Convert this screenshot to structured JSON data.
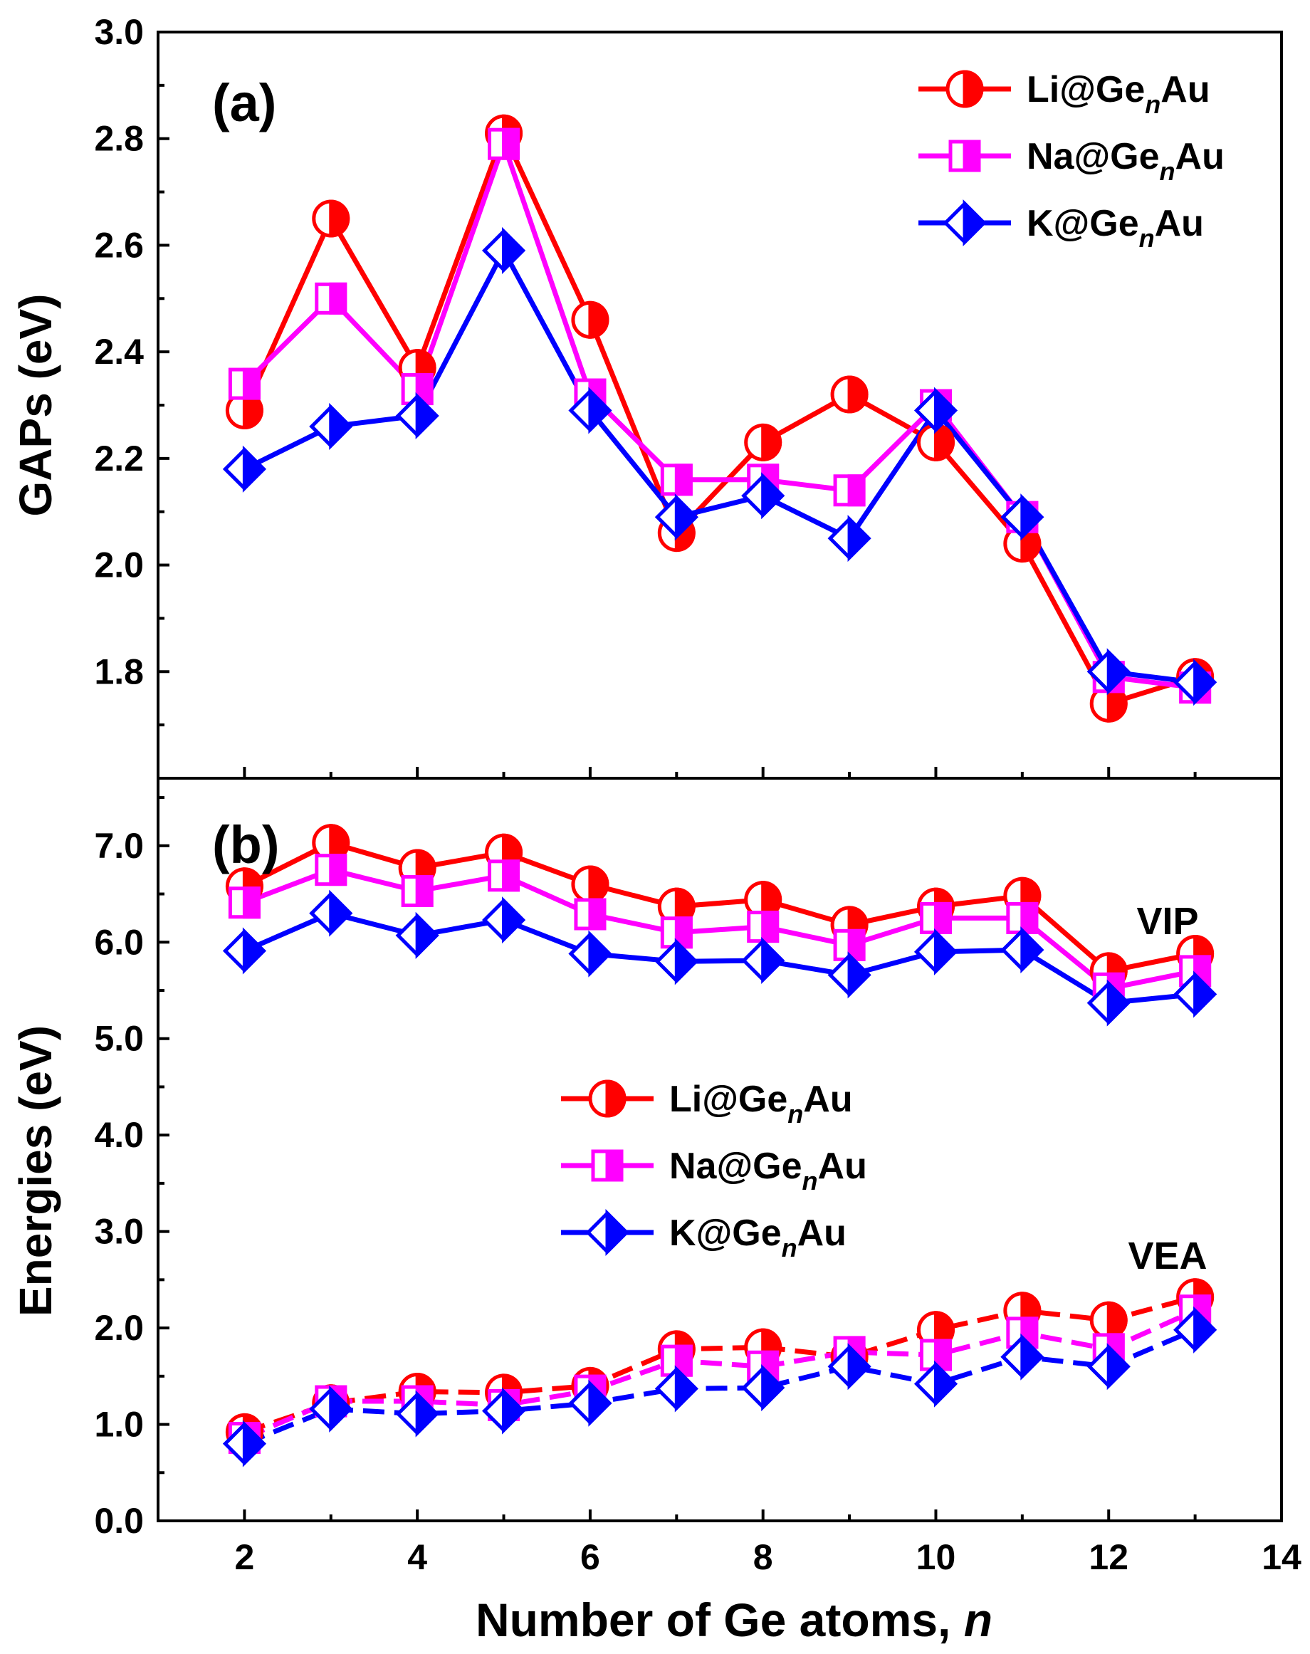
{
  "chart_data": [
    {
      "panel": "(a)",
      "type": "line",
      "ylabel": "GAPs (eV)",
      "ylim": [
        1.6,
        3.0
      ],
      "yticks": [
        "1.8",
        "2.0",
        "2.2",
        "2.4",
        "2.6",
        "2.8",
        "3.0"
      ],
      "xlim": [
        1,
        14
      ],
      "legend_position": "top-right",
      "x": [
        2,
        3,
        4,
        5,
        6,
        7,
        8,
        9,
        10,
        11,
        12,
        13
      ],
      "series": [
        {
          "name": "Li@GenAu",
          "legend_base": "Li@Ge",
          "legend_sub": "n",
          "legend_tail": "Au",
          "color": "#ff0000",
          "marker": "circle",
          "values": [
            2.29,
            2.65,
            2.37,
            2.81,
            2.46,
            2.06,
            2.23,
            2.32,
            2.23,
            2.04,
            1.74,
            1.79
          ]
        },
        {
          "name": "Na@GenAu",
          "legend_base": "Na@Ge",
          "legend_sub": "n",
          "legend_tail": "Au",
          "color": "#ff00ff",
          "marker": "square",
          "values": [
            2.34,
            2.5,
            2.33,
            2.79,
            2.32,
            2.16,
            2.16,
            2.14,
            2.3,
            2.09,
            1.79,
            1.77
          ]
        },
        {
          "name": "K@GenAu",
          "legend_base": "K@Ge",
          "legend_sub": "n",
          "legend_tail": "Au",
          "color": "#0000ff",
          "marker": "diamond",
          "values": [
            2.18,
            2.26,
            2.28,
            2.59,
            2.29,
            2.09,
            2.13,
            2.05,
            2.29,
            2.09,
            1.8,
            1.78
          ]
        }
      ]
    },
    {
      "panel": "(b)",
      "type": "line",
      "ylabel": "Energies (eV)",
      "xlabel": "Number of Ge atoms, ",
      "xlabel_italic": "n",
      "ylim": [
        0.0,
        7.7
      ],
      "yticks": [
        "0.0",
        "1.0",
        "2.0",
        "3.0",
        "4.0",
        "5.0",
        "6.0",
        "7.0"
      ],
      "xlim": [
        1,
        14
      ],
      "xticks": [
        "2",
        "4",
        "6",
        "8",
        "10",
        "12",
        "14"
      ],
      "legend_position": "center-left",
      "annotations": [
        "VIP",
        "VEA"
      ],
      "x": [
        2,
        3,
        4,
        5,
        6,
        7,
        8,
        9,
        10,
        11,
        12,
        13
      ],
      "series": [
        {
          "name": "Li@GenAu VIP",
          "color": "#ff0000",
          "marker": "circle",
          "dashed": false,
          "values": [
            6.58,
            7.03,
            6.77,
            6.93,
            6.6,
            6.37,
            6.44,
            6.18,
            6.37,
            6.48,
            5.7,
            5.88
          ]
        },
        {
          "name": "Na@GenAu VIP",
          "color": "#ff00ff",
          "marker": "square",
          "dashed": false,
          "values": [
            6.41,
            6.75,
            6.53,
            6.69,
            6.29,
            6.1,
            6.16,
            5.97,
            6.25,
            6.25,
            5.52,
            5.7
          ]
        },
        {
          "name": "K@GenAu VIP",
          "color": "#0000ff",
          "marker": "diamond",
          "dashed": false,
          "values": [
            5.91,
            6.3,
            6.07,
            6.23,
            5.88,
            5.8,
            5.81,
            5.66,
            5.9,
            5.92,
            5.37,
            5.46
          ]
        },
        {
          "name": "Li@GenAu VEA",
          "color": "#ff0000",
          "marker": "circle",
          "dashed": true,
          "values": [
            0.92,
            1.22,
            1.34,
            1.33,
            1.4,
            1.78,
            1.8,
            1.7,
            1.98,
            2.18,
            2.08,
            2.32
          ]
        },
        {
          "name": "Na@GenAu VEA",
          "color": "#ff00ff",
          "marker": "square",
          "dashed": true,
          "values": [
            0.86,
            1.24,
            1.24,
            1.2,
            1.35,
            1.66,
            1.6,
            1.75,
            1.72,
            1.95,
            1.78,
            2.18
          ]
        },
        {
          "name": "K@GenAu VEA",
          "color": "#0000ff",
          "marker": "diamond",
          "dashed": true,
          "values": [
            0.8,
            1.16,
            1.11,
            1.14,
            1.22,
            1.37,
            1.38,
            1.6,
            1.42,
            1.7,
            1.6,
            1.98
          ]
        }
      ],
      "legend": [
        {
          "legend_base": "Li@Ge",
          "legend_sub": "n",
          "legend_tail": "Au",
          "color": "#ff0000",
          "marker": "circle"
        },
        {
          "legend_base": "Na@Ge",
          "legend_sub": "n",
          "legend_tail": "Au",
          "color": "#ff00ff",
          "marker": "square"
        },
        {
          "legend_base": "K@Ge",
          "legend_sub": "n",
          "legend_tail": "Au",
          "color": "#0000ff",
          "marker": "diamond"
        }
      ]
    }
  ]
}
